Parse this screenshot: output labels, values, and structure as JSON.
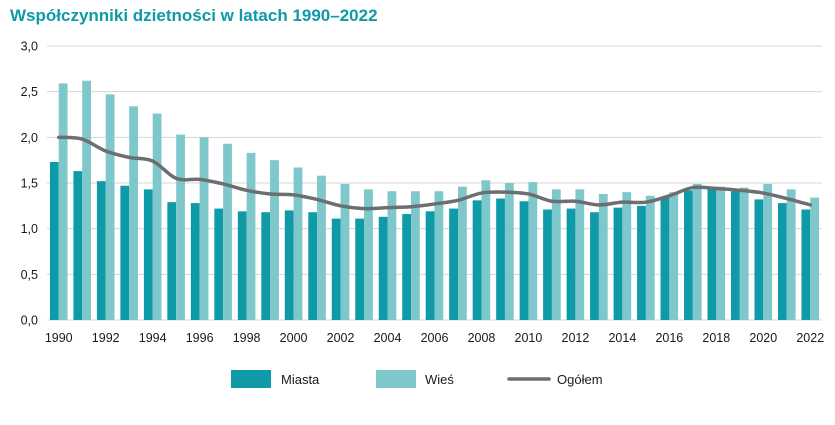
{
  "chart_data": {
    "type": "bar",
    "title": "Współczynniki dzietności w latach 1990–2022",
    "xlabel": "",
    "ylabel": "",
    "ylim": [
      0,
      3
    ],
    "yticks": [
      "0,0",
      "0,5",
      "1,0",
      "1,5",
      "2,0",
      "2,5",
      "3,0"
    ],
    "ytick_values": [
      0,
      0.5,
      1,
      1.5,
      2,
      2.5,
      3
    ],
    "grid": "horizontal",
    "legend_position": "bottom",
    "categories": [
      "1990",
      "1991",
      "1992",
      "1993",
      "1994",
      "1995",
      "1996",
      "1997",
      "1998",
      "1999",
      "2000",
      "2001",
      "2002",
      "2003",
      "2004",
      "2005",
      "2006",
      "2007",
      "2008",
      "2009",
      "2010",
      "2011",
      "2012",
      "2013",
      "2014",
      "2015",
      "2016",
      "2017",
      "2018",
      "2019",
      "2020",
      "2021",
      "2022"
    ],
    "xtick_labels": [
      "1990",
      "",
      "1992",
      "",
      "1994",
      "",
      "1996",
      "",
      "1998",
      "",
      "2000",
      "",
      "2002",
      "",
      "2004",
      "",
      "2006",
      "",
      "2008",
      "",
      "2010",
      "",
      "2012",
      "",
      "2014",
      "",
      "2016",
      "",
      "2018",
      "",
      "2020",
      "",
      "2022"
    ],
    "series": [
      {
        "name": "Miasta",
        "type": "bar",
        "color": "#0e9aa7",
        "values": [
          1.73,
          1.63,
          1.52,
          1.47,
          1.43,
          1.29,
          1.28,
          1.22,
          1.19,
          1.18,
          1.2,
          1.18,
          1.11,
          1.11,
          1.13,
          1.16,
          1.19,
          1.22,
          1.31,
          1.33,
          1.3,
          1.21,
          1.22,
          1.18,
          1.23,
          1.25,
          1.34,
          1.42,
          1.43,
          1.41,
          1.32,
          1.28,
          1.21
        ]
      },
      {
        "name": "Wieś",
        "type": "bar",
        "color": "#7ec8cb",
        "values": [
          2.59,
          2.62,
          2.47,
          2.34,
          2.26,
          2.03,
          2.0,
          1.93,
          1.83,
          1.75,
          1.67,
          1.58,
          1.49,
          1.43,
          1.41,
          1.41,
          1.41,
          1.46,
          1.53,
          1.5,
          1.51,
          1.43,
          1.43,
          1.38,
          1.4,
          1.36,
          1.4,
          1.49,
          1.46,
          1.45,
          1.49,
          1.43,
          1.34
        ]
      },
      {
        "name": "Ogółem",
        "type": "line",
        "color": "#6d6e70",
        "values": [
          2.0,
          1.98,
          1.85,
          1.78,
          1.74,
          1.55,
          1.54,
          1.49,
          1.42,
          1.38,
          1.37,
          1.32,
          1.25,
          1.22,
          1.23,
          1.24,
          1.27,
          1.31,
          1.39,
          1.4,
          1.38,
          1.3,
          1.3,
          1.26,
          1.29,
          1.29,
          1.36,
          1.45,
          1.44,
          1.42,
          1.39,
          1.33,
          1.26
        ]
      }
    ]
  }
}
